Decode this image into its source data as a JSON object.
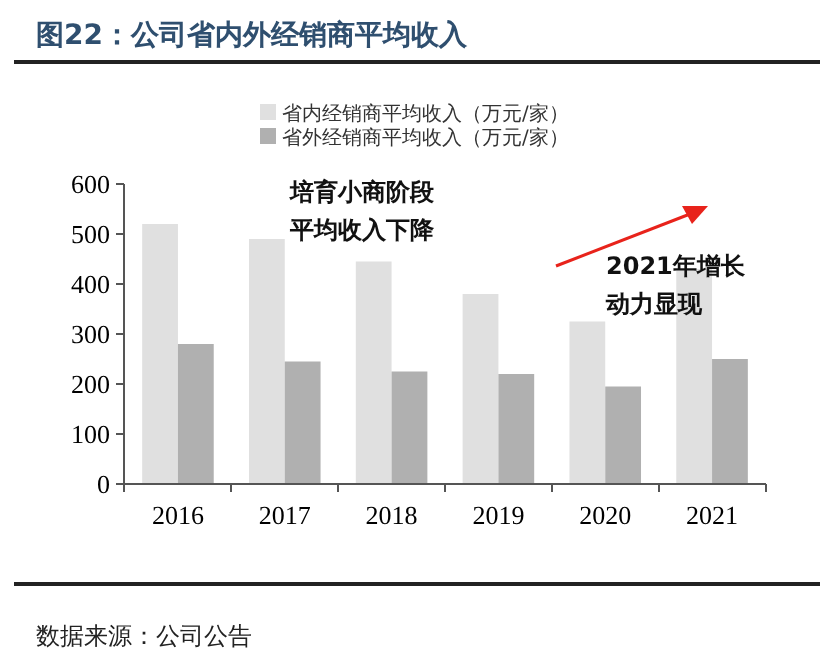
{
  "chart_data": {
    "type": "bar",
    "title": "图22：公司省内外经销商平均收入",
    "categories": [
      "2016",
      "2017",
      "2018",
      "2019",
      "2020",
      "2021"
    ],
    "series": [
      {
        "name": "省内经销商平均收入（万元/家）",
        "color": "#e0e0e0",
        "values": [
          520,
          490,
          445,
          380,
          325,
          430
        ]
      },
      {
        "name": "省外经销商平均收入（万元/家）",
        "color": "#b0b0b0",
        "values": [
          280,
          245,
          225,
          220,
          195,
          250
        ]
      }
    ],
    "ylim": [
      0,
      600
    ],
    "yticks": [
      0,
      100,
      200,
      300,
      400,
      500,
      600
    ],
    "grid": false,
    "legend": "top",
    "annotations": [
      "培育小商阶段",
      "平均收入下降",
      "2021年增长",
      "动力显现",
      "数据来源：公司公告"
    ]
  }
}
